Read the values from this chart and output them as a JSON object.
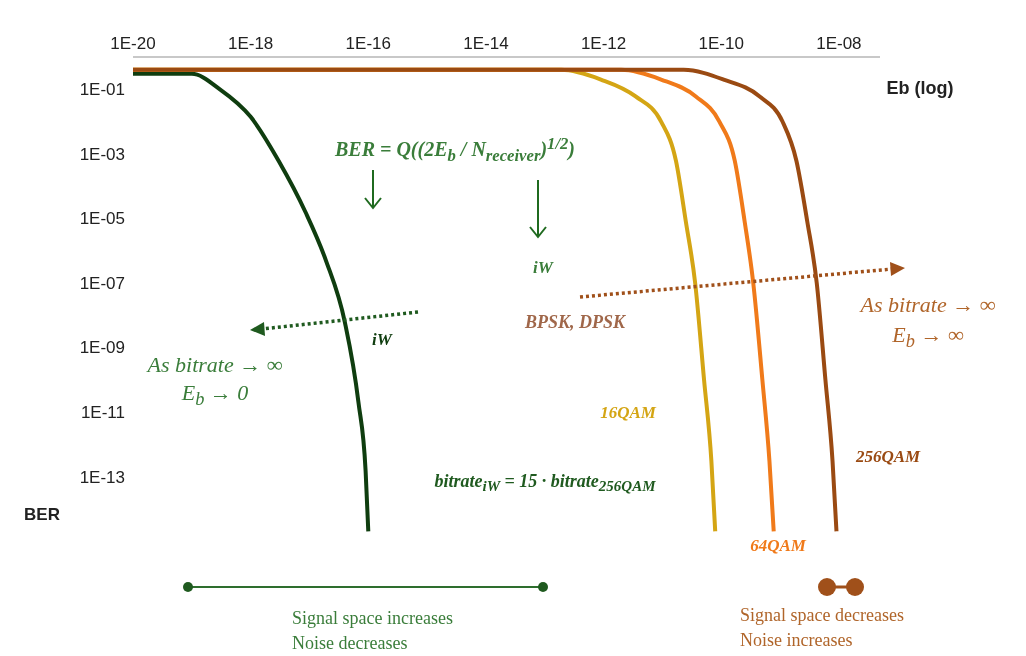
{
  "chart_data": {
    "type": "line",
    "xlabel": "Eb (log)",
    "ylabel": "BER",
    "log": "xy",
    "xlim": [
      1e-20,
      5e-08
    ],
    "xticks": [
      {
        "value": 1e-20,
        "label": "1E-20"
      },
      {
        "value": 1e-18,
        "label": "1E-18"
      },
      {
        "value": 1e-16,
        "label": "1E-16"
      },
      {
        "value": 1e-14,
        "label": "1E-14"
      },
      {
        "value": 1e-12,
        "label": "1E-12"
      },
      {
        "value": 1e-10,
        "label": "1E-10"
      },
      {
        "value": 1e-08,
        "label": "1E-08"
      }
    ],
    "ylim": [
      1e-15,
      1
    ],
    "yticks": [
      {
        "value": 0.1,
        "label": "1E-01"
      },
      {
        "value": 0.001,
        "label": "1E-03"
      },
      {
        "value": 1e-05,
        "label": "1E-05"
      },
      {
        "value": 1e-07,
        "label": "1E-07"
      },
      {
        "value": 1e-09,
        "label": "1E-09"
      },
      {
        "value": 1e-11,
        "label": "1E-11"
      },
      {
        "value": 1e-13,
        "label": "1E-13"
      }
    ],
    "series": [
      {
        "name": "iW",
        "color": "#0f3d0f",
        "x": [
          1e-20,
          1e-19,
          3e-19,
          1e-18,
          3e-18,
          8.5e-18,
          1.9e-17,
          4e-17,
          6.8e-17,
          9e-17,
          1e-16
        ],
        "values": [
          0.3,
          0.3,
          0.1,
          0.014,
          0.0006,
          1.6e-05,
          5e-07,
          6e-09,
          2e-11,
          1.5e-13,
          2e-15
        ]
      },
      {
        "name": "16QAM",
        "color": "#d4a514",
        "x": [
          1e-20,
          1.9e-13,
          9e-13,
          3.5e-12,
          9.5e-12,
          1.7e-11,
          2.5e-11,
          3.6e-11,
          5.1e-11,
          6.8e-11,
          7.9e-11
        ],
        "values": [
          0.4,
          0.4,
          0.2,
          0.06,
          0.01,
          0.0006,
          8e-06,
          1e-07,
          1e-10,
          3e-13,
          2e-15
        ]
      },
      {
        "name": "64QAM",
        "color": "#f07a1a",
        "x": [
          1e-20,
          2e-12,
          9.5e-12,
          3.7e-11,
          9.3e-11,
          1.7e-10,
          2.5e-10,
          3.5e-10,
          5e-10,
          6.6e-10,
          7.8e-10
        ],
        "values": [
          0.4,
          0.4,
          0.2,
          0.06,
          0.01,
          0.0006,
          8e-06,
          1e-07,
          1e-10,
          3e-13,
          2e-15
        ]
      },
      {
        "name": "256QAM",
        "color": "#9a4a12",
        "x": [
          1e-20,
          2.3e-11,
          1.1e-10,
          4.5e-10,
          1.1e-09,
          1.9e-09,
          2.9e-09,
          4.2e-09,
          5.9e-09,
          7.8e-09,
          9.1e-09
        ],
        "values": [
          0.4,
          0.4,
          0.2,
          0.06,
          0.01,
          0.0006,
          8e-06,
          1e-07,
          1e-10,
          3e-13,
          2e-15
        ]
      }
    ],
    "annotations": [
      "BER = Q((2E$_{b}$ / N$_{receiver}$)$^{1/2}$)",
      "iW",
      "As bitrate → ∞",
      "E$_{b}$ → 0",
      "BPSK, DPSK",
      "As bitrate → ∞",
      "E$_{b}$ → ∞",
      "bitrate$_{iW}$ = 15 · bitrate$_{256QAM}$",
      "Signal space increases",
      "Noise decreases",
      "Signal space decreases",
      "Noise increases"
    ]
  }
}
